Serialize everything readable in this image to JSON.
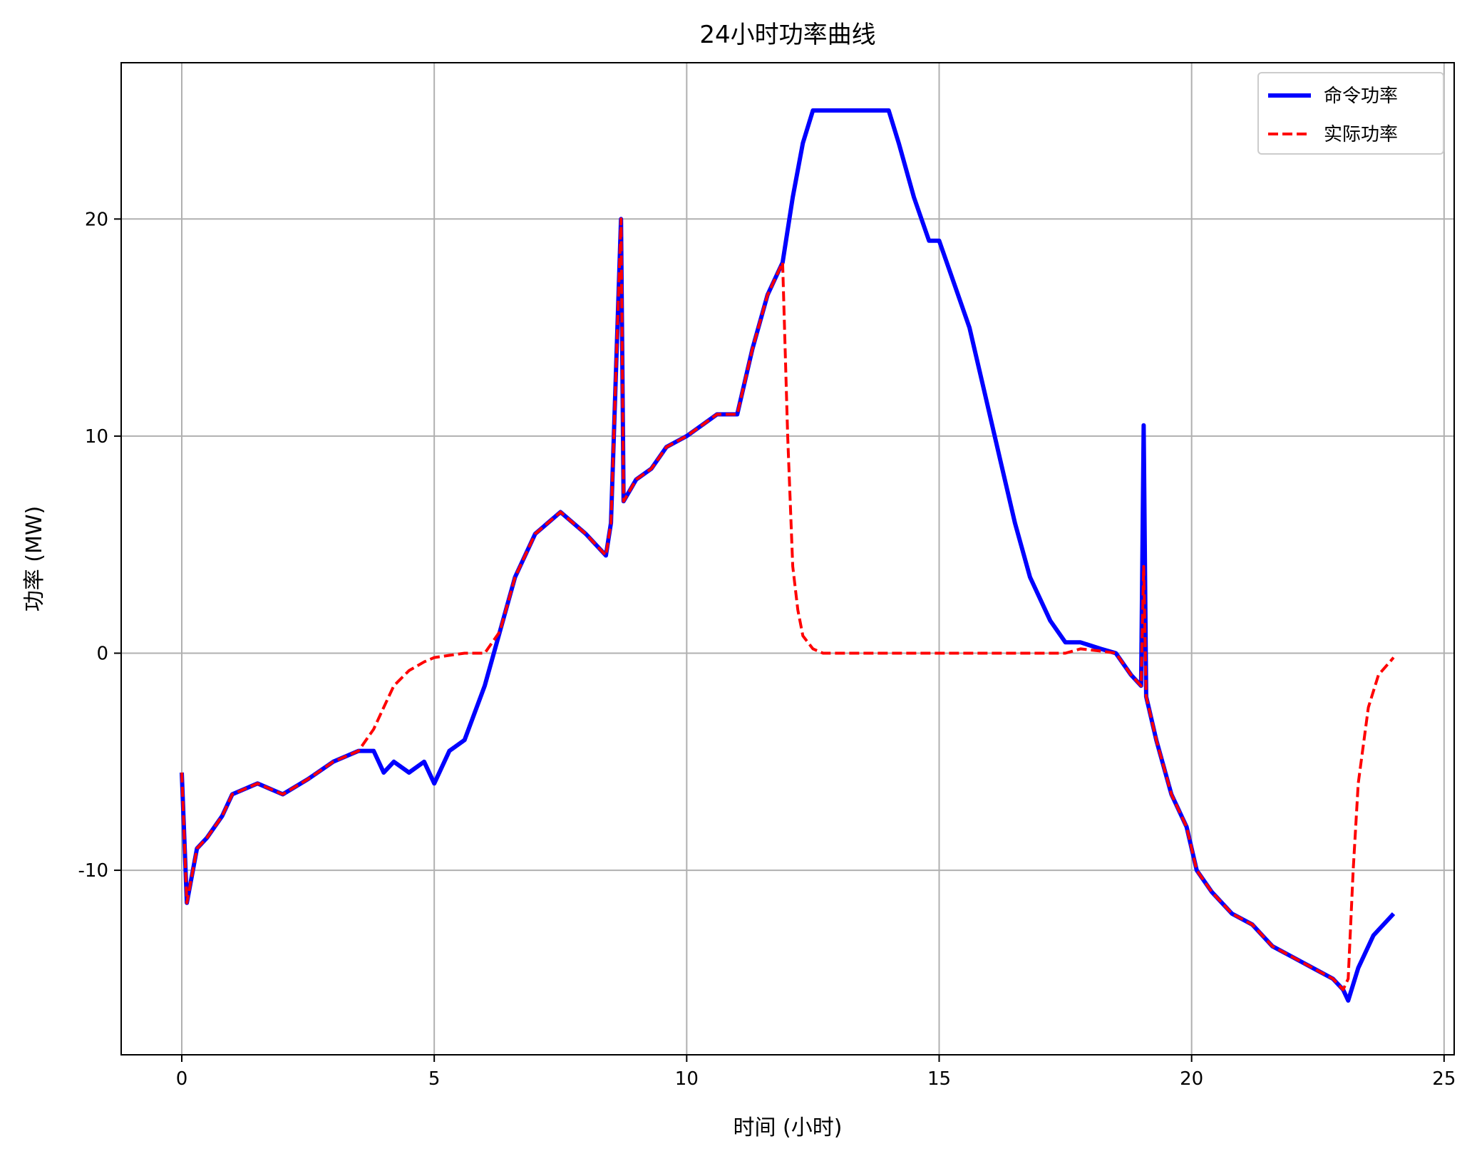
{
  "chart_data": {
    "type": "line",
    "title": "24小时功率曲线",
    "xlabel": "时间 (小时)",
    "ylabel": "功率 (MW)",
    "xlim": [
      -1.2,
      25.2
    ],
    "ylim": [
      -18.5,
      27.2
    ],
    "xticks": [
      0,
      5,
      10,
      15,
      20,
      25
    ],
    "yticks": [
      -10,
      0,
      10,
      20
    ],
    "grid": true,
    "legend_position": "top-right",
    "series": [
      {
        "name": "命令功率",
        "color": "#0000ff",
        "style": "solid",
        "x": [
          0,
          0.1,
          0.3,
          0.5,
          0.8,
          1.0,
          1.5,
          2.0,
          2.5,
          3.0,
          3.5,
          3.8,
          4.0,
          4.2,
          4.5,
          4.8,
          5.0,
          5.3,
          5.6,
          6.0,
          6.3,
          6.6,
          7.0,
          7.5,
          8.0,
          8.4,
          8.5,
          8.7,
          8.75,
          9.0,
          9.3,
          9.6,
          10.0,
          10.3,
          10.6,
          11.0,
          11.3,
          11.6,
          11.9,
          12.1,
          12.3,
          12.5,
          12.7,
          13.0,
          13.5,
          14.0,
          14.2,
          14.5,
          14.8,
          15.0,
          15.3,
          15.6,
          15.9,
          16.2,
          16.5,
          16.8,
          17.2,
          17.5,
          17.8,
          18.2,
          18.5,
          18.8,
          19.0,
          19.05,
          19.1,
          19.15,
          19.3,
          19.6,
          19.9,
          20.1,
          20.4,
          20.8,
          21.2,
          21.6,
          22.0,
          22.4,
          22.8,
          23.0,
          23.1,
          23.3,
          23.6,
          24.0
        ],
        "y": [
          -5.5,
          -11.5,
          -9.0,
          -8.5,
          -7.5,
          -6.5,
          -6.0,
          -6.5,
          -5.8,
          -5.0,
          -4.5,
          -4.5,
          -5.5,
          -5.0,
          -5.5,
          -5.0,
          -6.0,
          -4.5,
          -4.0,
          -1.5,
          1.0,
          3.5,
          5.5,
          6.5,
          5.5,
          4.5,
          6.0,
          20.0,
          7.0,
          8.0,
          8.5,
          9.5,
          10.0,
          10.5,
          11.0,
          11.0,
          14.0,
          16.5,
          18.0,
          21.0,
          23.5,
          25.0,
          25.0,
          25.0,
          25.0,
          25.0,
          23.5,
          21.0,
          19.0,
          19.0,
          17.0,
          15.0,
          12.0,
          9.0,
          6.0,
          3.5,
          1.5,
          0.5,
          0.5,
          0.2,
          0.0,
          -1.0,
          -1.5,
          10.5,
          -2.0,
          -2.5,
          -4.0,
          -6.5,
          -8.0,
          -10.0,
          -11.0,
          -12.0,
          -12.5,
          -13.5,
          -14.0,
          -14.5,
          -15.0,
          -15.5,
          -16.0,
          -14.5,
          -13.0,
          -12.0
        ]
      },
      {
        "name": "实际功率",
        "color": "#ff0000",
        "style": "dashed",
        "x": [
          0,
          0.1,
          0.3,
          0.5,
          0.8,
          1.0,
          1.5,
          2.0,
          2.5,
          3.0,
          3.5,
          3.8,
          4.0,
          4.2,
          4.5,
          4.8,
          5.0,
          5.3,
          5.6,
          6.0,
          6.3,
          6.6,
          7.0,
          7.5,
          8.0,
          8.4,
          8.5,
          8.7,
          8.75,
          9.0,
          9.3,
          9.6,
          10.0,
          10.3,
          10.6,
          11.0,
          11.3,
          11.6,
          11.9,
          12.0,
          12.1,
          12.2,
          12.3,
          12.5,
          12.7,
          13.0,
          14.0,
          15.0,
          16.0,
          17.0,
          17.5,
          17.8,
          18.2,
          18.5,
          18.8,
          19.0,
          19.05,
          19.1,
          19.15,
          19.3,
          19.6,
          19.9,
          20.1,
          20.4,
          20.8,
          21.2,
          21.6,
          22.0,
          22.4,
          22.8,
          23.0,
          23.1,
          23.2,
          23.3,
          23.5,
          23.7,
          24.0
        ],
        "y": [
          -5.5,
          -11.5,
          -9.0,
          -8.5,
          -7.5,
          -6.5,
          -6.0,
          -6.5,
          -5.8,
          -5.0,
          -4.5,
          -3.5,
          -2.5,
          -1.5,
          -0.8,
          -0.4,
          -0.2,
          -0.1,
          0.0,
          0.0,
          1.0,
          3.5,
          5.5,
          6.5,
          5.5,
          4.5,
          6.0,
          20.0,
          7.0,
          8.0,
          8.5,
          9.5,
          10.0,
          10.5,
          11.0,
          11.0,
          14.0,
          16.5,
          18.0,
          10.0,
          4.0,
          2.0,
          0.8,
          0.2,
          0.0,
          0.0,
          0.0,
          0.0,
          0.0,
          0.0,
          0.0,
          0.2,
          0.1,
          0.0,
          -1.0,
          -1.5,
          4.0,
          -2.0,
          -2.5,
          -4.0,
          -6.5,
          -8.0,
          -10.0,
          -11.0,
          -12.0,
          -12.5,
          -13.5,
          -14.0,
          -14.5,
          -15.0,
          -15.5,
          -15.0,
          -10.0,
          -6.0,
          -2.5,
          -1.0,
          -0.2
        ]
      }
    ]
  }
}
